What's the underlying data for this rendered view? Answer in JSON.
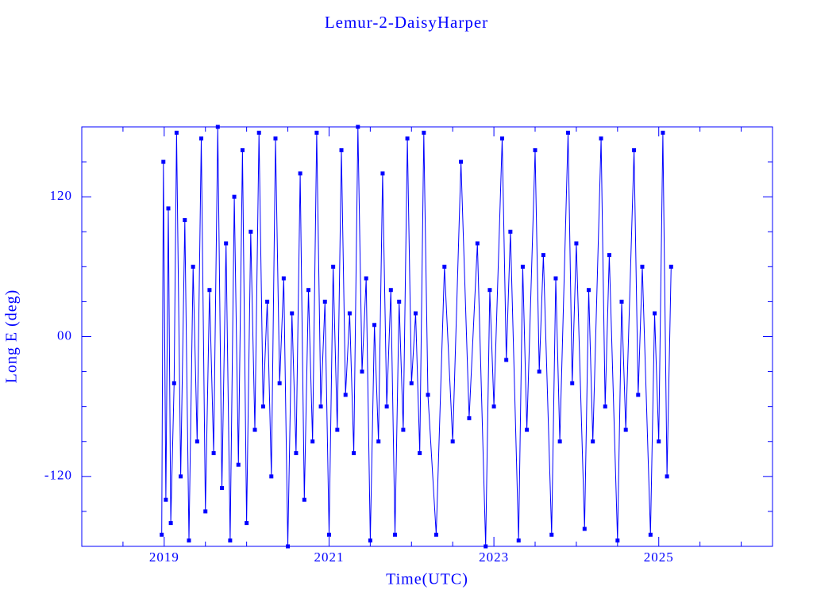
{
  "chart_data": {
    "type": "line",
    "title": "Lemur-2-DaisyHarper",
    "x_label": "Time(UTC)",
    "y_label": "Long E (deg)",
    "color": "#0000ff",
    "markers": true,
    "x": [
      2018.97,
      2018.99,
      2019.02,
      2019.05,
      2019.08,
      2019.12,
      2019.15,
      2019.2,
      2019.25,
      2019.3,
      2019.35,
      2019.4,
      2019.45,
      2019.5,
      2019.55,
      2019.6,
      2019.65,
      2019.7,
      2019.75,
      2019.8,
      2019.85,
      2019.9,
      2019.95,
      2020.0,
      2020.05,
      2020.1,
      2020.15,
      2020.2,
      2020.25,
      2020.3,
      2020.35,
      2020.4,
      2020.45,
      2020.5,
      2020.55,
      2020.6,
      2020.65,
      2020.7,
      2020.75,
      2020.8,
      2020.85,
      2020.9,
      2020.95,
      2021.0,
      2021.05,
      2021.1,
      2021.15,
      2021.2,
      2021.25,
      2021.3,
      2021.35,
      2021.4,
      2021.45,
      2021.5,
      2021.55,
      2021.6,
      2021.65,
      2021.7,
      2021.75,
      2021.8,
      2021.85,
      2021.9,
      2021.95,
      2022.0,
      2022.05,
      2022.1,
      2022.15,
      2022.2,
      2022.3,
      2022.4,
      2022.5,
      2022.6,
      2022.7,
      2022.8,
      2022.9,
      2022.95,
      2023.0,
      2023.1,
      2023.15,
      2023.2,
      2023.3,
      2023.35,
      2023.4,
      2023.5,
      2023.55,
      2023.6,
      2023.7,
      2023.75,
      2023.8,
      2023.9,
      2023.95,
      2024.0,
      2024.1,
      2024.15,
      2024.2,
      2024.3,
      2024.35,
      2024.4,
      2024.5,
      2024.55,
      2024.6,
      2024.7,
      2024.75,
      2024.8,
      2024.9,
      2024.95,
      2025.0,
      2025.05,
      2025.1,
      2025.15
    ],
    "values": [
      -170,
      150,
      -140,
      110,
      -160,
      -40,
      175,
      -120,
      100,
      -175,
      60,
      -90,
      170,
      -150,
      40,
      -100,
      180,
      -130,
      80,
      -175,
      120,
      -110,
      160,
      -160,
      90,
      -80,
      175,
      -60,
      30,
      -120,
      170,
      -40,
      50,
      -180,
      20,
      -100,
      140,
      -140,
      40,
      -90,
      175,
      -60,
      30,
      -170,
      60,
      -80,
      160,
      -50,
      20,
      -100,
      180,
      -30,
      50,
      -175,
      10,
      -90,
      140,
      -60,
      40,
      -170,
      30,
      -80,
      170,
      -40,
      20,
      -100,
      175,
      -50,
      -170,
      60,
      -90,
      150,
      -70,
      80,
      -180,
      40,
      -60,
      170,
      -20,
      90,
      -175,
      60,
      -80,
      160,
      -30,
      70,
      -170,
      50,
      -90,
      175,
      -40,
      80,
      -165,
      40,
      -90,
      170,
      -60,
      70,
      -175,
      30,
      -80,
      160,
      -50,
      60,
      -170,
      20,
      -90,
      175,
      -120,
      60
    ],
    "xlim": [
      2018,
      2026.38
    ],
    "xticks": [
      2019,
      2021,
      2023,
      2025
    ],
    "xminor_ticks": [
      2018.5,
      2019.5,
      2020,
      2020.5,
      2021.5,
      2022,
      2022.5,
      2023.5,
      2024,
      2024.5,
      2025.5,
      2026
    ],
    "ylim": [
      -180,
      180
    ],
    "yticks": [
      120,
      {
        "value": 0,
        "label": "00"
      },
      -120
    ],
    "yminor_ticks": [
      150,
      90,
      60,
      30,
      -30,
      -60,
      -90,
      -150
    ]
  }
}
